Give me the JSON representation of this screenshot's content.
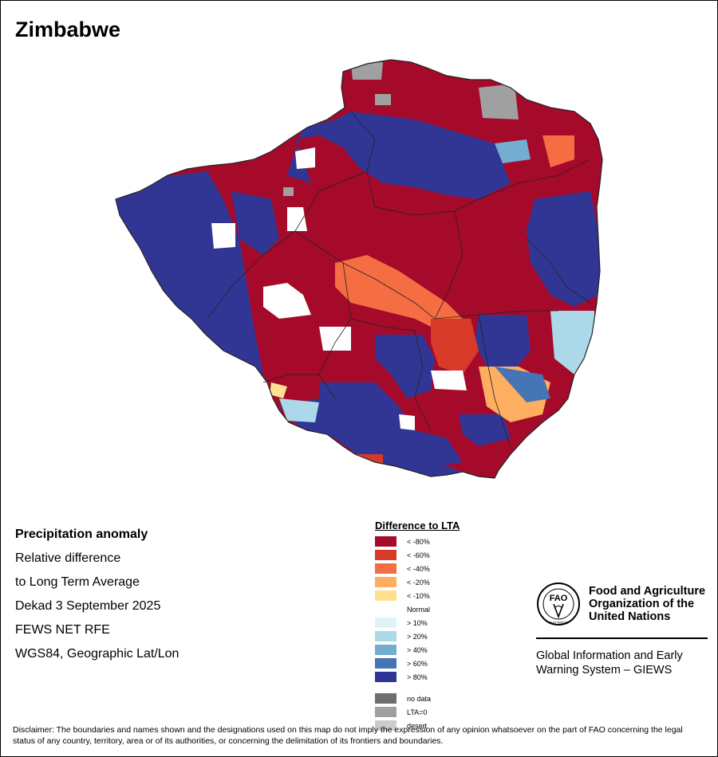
{
  "map": {
    "title": "Zimbabwe"
  },
  "info": {
    "line1": "Precipitation anomaly",
    "line2": "Relative difference",
    "line3": "to Long Term Average",
    "line4": "Dekad 3 September 2025",
    "line5": "FEWS NET RFE",
    "line6": "WGS84, Geographic Lat/Lon"
  },
  "legend": {
    "title": "Difference to LTA",
    "items": [
      {
        "label": "< -80%",
        "color": "#a50a2a"
      },
      {
        "label": "< -60%",
        "color": "#d83a2a"
      },
      {
        "label": "< -40%",
        "color": "#f46d43"
      },
      {
        "label": "< -20%",
        "color": "#fdae61"
      },
      {
        "label": "< -10%",
        "color": "#fee090"
      },
      {
        "label": "Normal",
        "color": "#ffffff"
      },
      {
        "label": "> 10%",
        "color": "#e0f3f8"
      },
      {
        "label": "> 20%",
        "color": "#abd9e9"
      },
      {
        "label": "> 40%",
        "color": "#74add1"
      },
      {
        "label": "> 60%",
        "color": "#4575b4"
      },
      {
        "label": "> 80%",
        "color": "#313695"
      }
    ],
    "extra": [
      {
        "label": "no data",
        "color": "#6e6e6e"
      },
      {
        "label": "LTA=0",
        "color": "#a0a0a0"
      },
      {
        "label": "desert",
        "color": "#cccccc"
      }
    ]
  },
  "fao": {
    "logo_text": "FAO",
    "logo_sub": "FIAT PANIS",
    "name_line1": "Food and Agriculture",
    "name_line2": "Organization of the",
    "name_line3": "United Nations",
    "giews_line1": "Global Information and Early",
    "giews_line2": "Warning System – GIEWS"
  },
  "disclaimer": "Disclaimer: The boundaries and names shown and the designations used on this map do not imply the expression of any opinion whatsoever on the part of FAO concerning the legal status of any country, territory, area or of its authorities, or concerning the delimitation of its frontiers and boundaries."
}
